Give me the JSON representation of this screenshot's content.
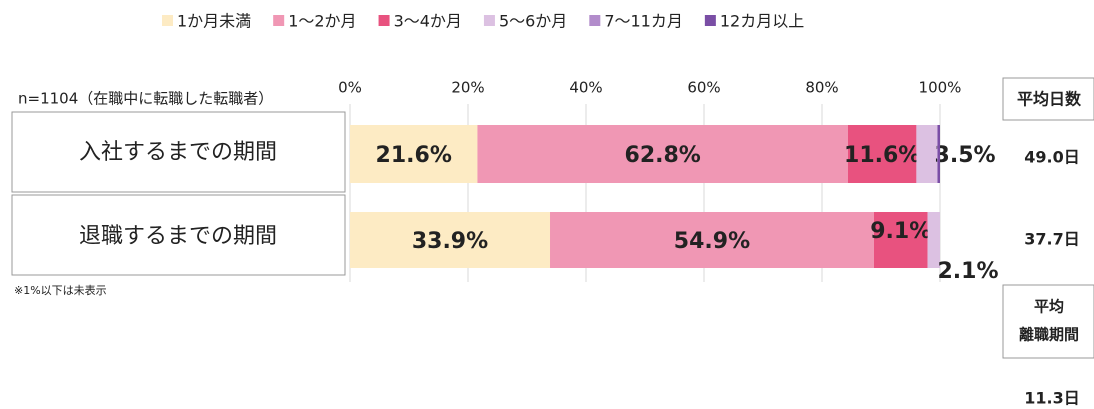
{
  "chart_data": {
    "type": "stacked-bar-horizontal",
    "subtitle": "n=1104（在職中に転職した転職者）",
    "note": "※1%以下は未表示",
    "categories": [
      "入社するまでの期間",
      "退職するまでの期間"
    ],
    "xlim": [
      0,
      100
    ],
    "xticks": [
      {
        "value": 0,
        "label": "0%"
      },
      {
        "value": 20,
        "label": "20%"
      },
      {
        "value": 40,
        "label": "40%"
      },
      {
        "value": 60,
        "label": "60%"
      },
      {
        "value": 80,
        "label": "80%"
      },
      {
        "value": 100,
        "label": "100%"
      }
    ],
    "grid": true,
    "legend": "top",
    "series": [
      {
        "name": "1か月未満",
        "color": "#fdebc4",
        "values": [
          21.6,
          33.9
        ],
        "value_labels": [
          "21.6%",
          "33.9%"
        ]
      },
      {
        "name": "1〜2か月",
        "color": "#f097b4",
        "values": [
          62.8,
          54.9
        ],
        "value_labels": [
          "62.8%",
          "54.9%"
        ]
      },
      {
        "name": "3〜4か月",
        "color": "#e8527f",
        "values": [
          11.6,
          9.1
        ],
        "value_labels": [
          "11.6%",
          "9.1%"
        ]
      },
      {
        "name": "5〜6か月",
        "color": "#dcc1e2",
        "values": [
          3.5,
          2.1
        ],
        "value_labels": [
          "3.5%",
          "2.1%"
        ]
      },
      {
        "name": "7〜11カ月",
        "color": "#b28ccb",
        "values": [
          0.1,
          0
        ]
      },
      {
        "name": "12カ月以上",
        "color": "#7a4ea5",
        "values": [
          0.4,
          0
        ]
      }
    ],
    "side": {
      "avg_days_header": "平均日数",
      "avg_days": [
        "49.0日",
        "37.7日"
      ],
      "avg_leave_header": [
        "平均",
        "離職期間"
      ],
      "avg_leave": "11.3日"
    }
  }
}
